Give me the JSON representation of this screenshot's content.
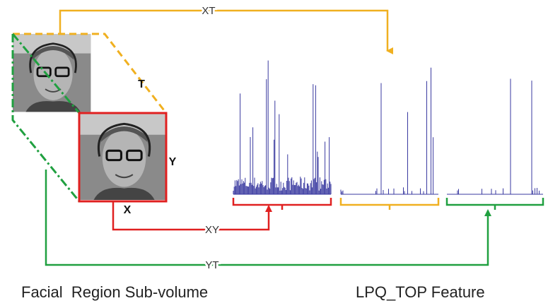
{
  "labels": {
    "xt": "XT",
    "t": "T",
    "y": "Y",
    "x": "X",
    "xy": "XY",
    "yt": "YT"
  },
  "captions": {
    "left": "Facial  Region Sub-volume",
    "right": "LPQ_TOP Feature"
  }
}
